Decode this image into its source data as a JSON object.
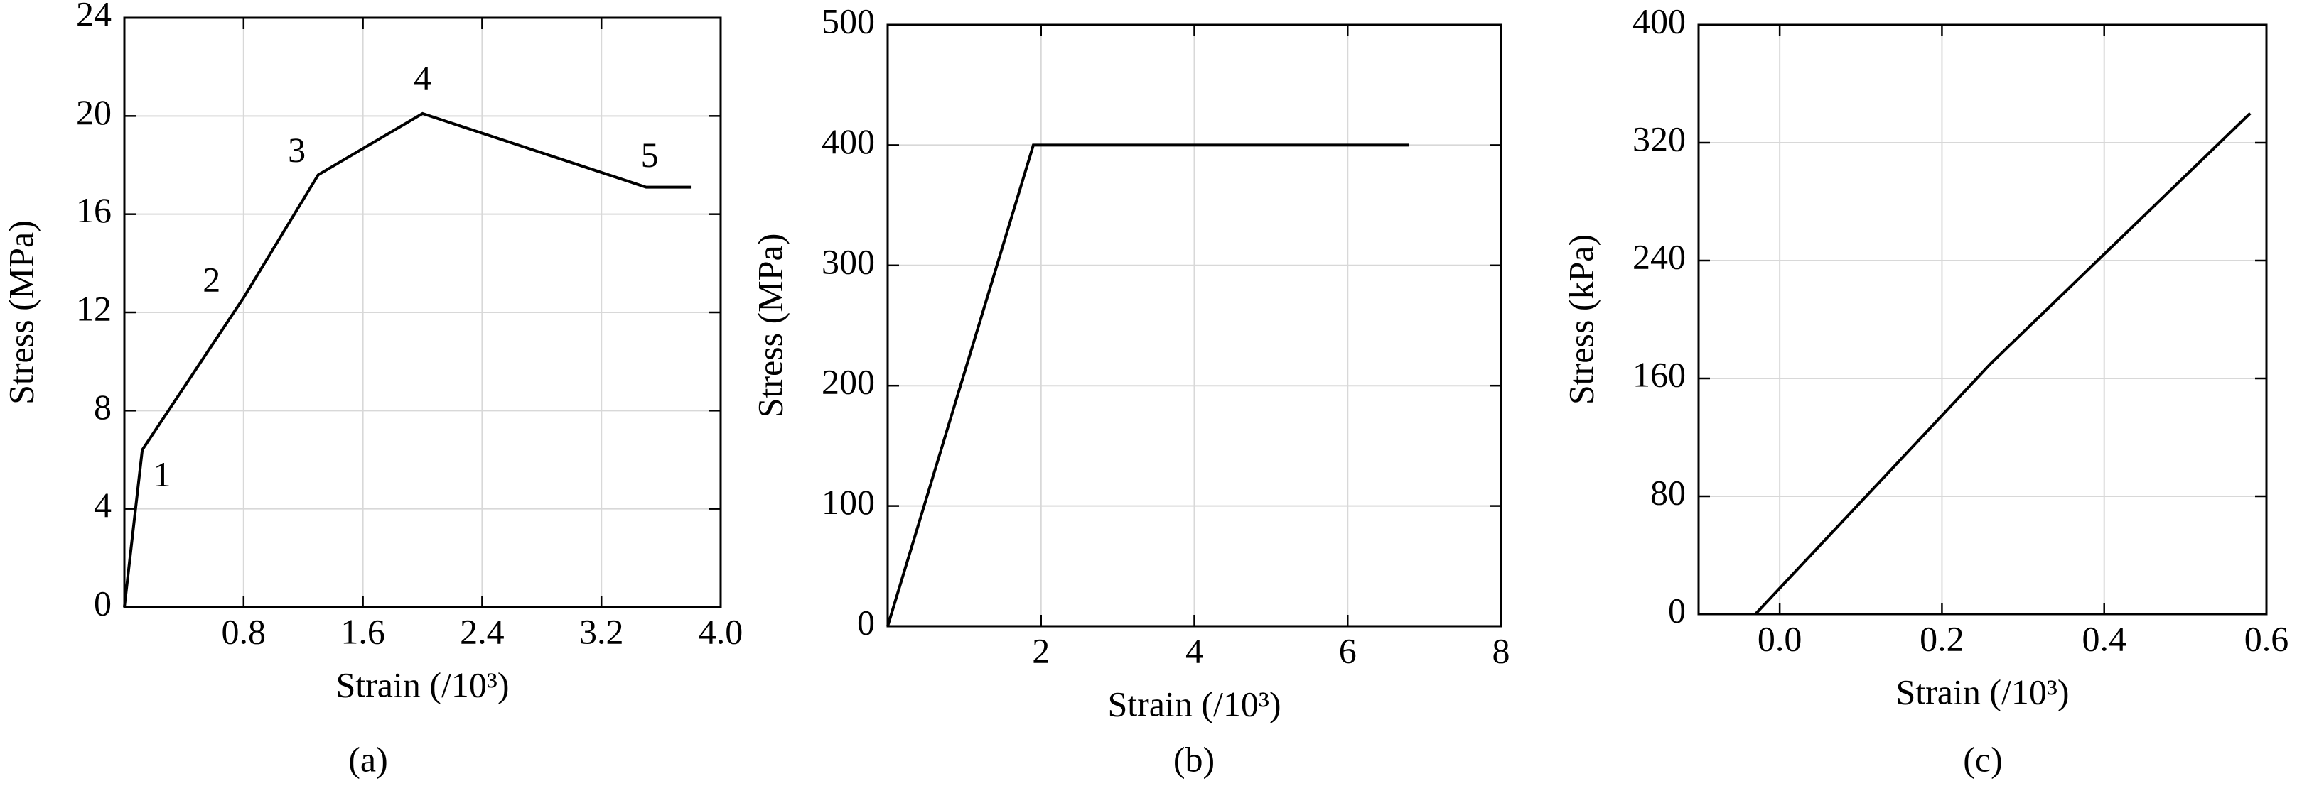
{
  "chart_data": [
    {
      "type": "line",
      "subtitle": "(a)",
      "x_label": "Strain (/10³)",
      "y_label": "Stress (MPa)",
      "x": [
        0,
        0.12,
        0.8,
        1.3,
        2.0,
        3.5,
        3.8
      ],
      "values": [
        0,
        6.4,
        12.6,
        17.6,
        20.1,
        17.1,
        17.1
      ],
      "color": "#000000",
      "annotations": [
        "1",
        "2",
        "3",
        "4",
        "5"
      ],
      "xlim": [
        0,
        4
      ],
      "ylim": [
        0,
        24
      ],
      "xticks": [
        {
          "value": 0.8,
          "label": "0.8"
        },
        {
          "value": 1.6,
          "label": "1.6"
        },
        {
          "value": 2.4,
          "label": "2.4"
        },
        {
          "value": 3.2,
          "label": "3.2"
        },
        {
          "value": 4,
          "label": "4.0"
        }
      ],
      "yticks": [
        0,
        4,
        8,
        12,
        16,
        20,
        24
      ],
      "grid": true
    },
    {
      "type": "line",
      "subtitle": "(b)",
      "x_label": "Strain (/10³)",
      "y_label": "Stress (MPa)",
      "x": [
        0,
        1.9,
        6.8
      ],
      "values": [
        0,
        400,
        400
      ],
      "color": "#000000",
      "xlim": [
        0,
        8
      ],
      "ylim": [
        0,
        500
      ],
      "xticks": [
        2,
        4,
        6,
        8
      ],
      "yticks": [
        0,
        100,
        200,
        300,
        400,
        500
      ],
      "grid": true
    },
    {
      "type": "line",
      "subtitle": "(c)",
      "x_label": "Strain (/10³)",
      "y_label": "Stress (kPa)",
      "x": [
        -0.03,
        0.26,
        0.58
      ],
      "values": [
        0,
        170,
        340
      ],
      "color": "#000000",
      "xlim": [
        -0.1,
        0.6
      ],
      "ylim": [
        0,
        400
      ],
      "xticks": [
        {
          "value": 0,
          "label": "0.0"
        },
        0.2,
        0.4,
        0.6
      ],
      "yticks": [
        0,
        80,
        160,
        240,
        320,
        400
      ],
      "grid": true
    }
  ]
}
